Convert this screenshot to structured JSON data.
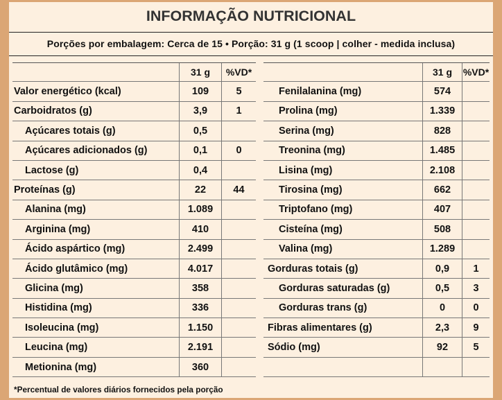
{
  "title": "INFORMAÇÃO NUTRICIONAL",
  "serving": "Porções por embalagem: Cerca de 15 • Porção: 31 g (1 scoop | colher - medida inclusa)",
  "header": {
    "portion": "31 g",
    "dv": "%VD*"
  },
  "left_rows": [
    {
      "name": "Valor energético (kcal)",
      "value": "109",
      "dv": "5",
      "indent": false
    },
    {
      "name": "Carboidratos (g)",
      "value": "3,9",
      "dv": "1",
      "indent": false
    },
    {
      "name": "Açúcares totais (g)",
      "value": "0,5",
      "dv": "",
      "indent": true
    },
    {
      "name": "Açúcares adicionados (g)",
      "value": "0,1",
      "dv": "0",
      "indent": true
    },
    {
      "name": "Lactose (g)",
      "value": "0,4",
      "dv": "",
      "indent": true
    },
    {
      "name": "Proteínas (g)",
      "value": "22",
      "dv": "44",
      "indent": false
    },
    {
      "name": "Alanina (mg)",
      "value": "1.089",
      "dv": "",
      "indent": true
    },
    {
      "name": "Arginina (mg)",
      "value": "410",
      "dv": "",
      "indent": true
    },
    {
      "name": "Ácido aspártico (mg)",
      "value": "2.499",
      "dv": "",
      "indent": true
    },
    {
      "name": "Ácido glutâmico (mg)",
      "value": "4.017",
      "dv": "",
      "indent": true
    },
    {
      "name": "Glicina (mg)",
      "value": "358",
      "dv": "",
      "indent": true
    },
    {
      "name": "Histidina (mg)",
      "value": "336",
      "dv": "",
      "indent": true
    },
    {
      "name": "Isoleucina (mg)",
      "value": "1.150",
      "dv": "",
      "indent": true
    },
    {
      "name": "Leucina (mg)",
      "value": "2.191",
      "dv": "",
      "indent": true
    },
    {
      "name": "Metionina (mg)",
      "value": "360",
      "dv": "",
      "indent": true
    }
  ],
  "right_rows": [
    {
      "name": "Fenilalanina (mg)",
      "value": "574",
      "dv": "",
      "indent": true
    },
    {
      "name": "Prolina (mg)",
      "value": "1.339",
      "dv": "",
      "indent": true
    },
    {
      "name": "Serina (mg)",
      "value": "828",
      "dv": "",
      "indent": true
    },
    {
      "name": "Treonina (mg)",
      "value": "1.485",
      "dv": "",
      "indent": true
    },
    {
      "name": "Lisina (mg)",
      "value": "2.108",
      "dv": "",
      "indent": true
    },
    {
      "name": "Tirosina (mg)",
      "value": "662",
      "dv": "",
      "indent": true
    },
    {
      "name": "Triptofano (mg)",
      "value": "407",
      "dv": "",
      "indent": true
    },
    {
      "name": "Cisteína (mg)",
      "value": "508",
      "dv": "",
      "indent": true
    },
    {
      "name": "Valina (mg)",
      "value": "1.289",
      "dv": "",
      "indent": true
    },
    {
      "name": "Gorduras totais (g)",
      "value": "0,9",
      "dv": "1",
      "indent": false
    },
    {
      "name": "Gorduras saturadas (g)",
      "value": "0,5",
      "dv": "3",
      "indent": true
    },
    {
      "name": "Gorduras trans (g)",
      "value": "0",
      "dv": "0",
      "indent": true
    },
    {
      "name": "Fibras alimentares (g)",
      "value": "2,3",
      "dv": "9",
      "indent": false
    },
    {
      "name": "Sódio (mg)",
      "value": "92",
      "dv": "5",
      "indent": false
    },
    {
      "name": "",
      "value": "",
      "dv": "",
      "indent": false
    }
  ],
  "footnote": "*Percentual de valores diários fornecidos pela porção",
  "colors": {
    "background": "#dba675",
    "panel": "#fdf0e0"
  }
}
